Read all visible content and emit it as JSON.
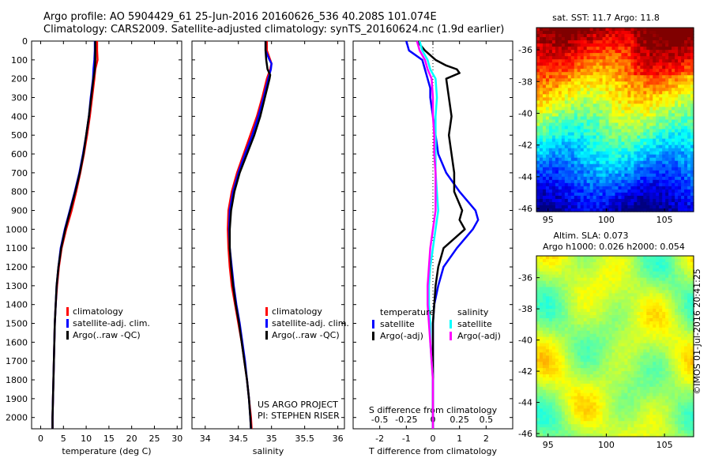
{
  "header": {
    "line1": "Argo profile: AO 5904429_61 25-Jun-2016 20160626_536 40.208S 101.074E",
    "line2": "Climatology: CARS2009. Satellite-adjusted climatology: synTS_20160624.nc (1.9d earlier)"
  },
  "sst_title": "sat. SST: 11.7 Argo: 11.8",
  "sla_title1": "Altim. SLA: 0.073",
  "sla_title2": "Argo h1000: 0.026 h2000: 0.054",
  "credit": "©IMOS 01-Jul-2016 20:41:25",
  "colors": {
    "climatology": "#ff0000",
    "satellite": "#0000ff",
    "argo": "#000000",
    "sat_s": "#00ffff",
    "argo_s": "#ff00ff"
  },
  "chart_data": [
    {
      "type": "line",
      "xlabel": "temperature (deg C)",
      "xlim": [
        -2,
        31
      ],
      "xticks": [
        0,
        5,
        10,
        15,
        20,
        25,
        30
      ],
      "ylim": [
        2060,
        0
      ],
      "yticks": [
        0,
        100,
        200,
        300,
        400,
        500,
        600,
        700,
        800,
        900,
        1000,
        1100,
        1200,
        1300,
        1400,
        1500,
        1600,
        1700,
        1800,
        1900,
        2000
      ],
      "legend": [
        "climatology",
        "satellite-adj. clim.",
        "Argo(..raw -QC)"
      ],
      "series": [
        {
          "name": "climatology",
          "depth": [
            0,
            50,
            100,
            150,
            200,
            300,
            400,
            500,
            600,
            700,
            800,
            900,
            1000,
            1100,
            1200,
            1300,
            1400,
            1500,
            1600,
            1700,
            1800,
            1900,
            2000,
            2060
          ],
          "values": [
            12.4,
            12.4,
            12.5,
            12.0,
            11.8,
            11.3,
            10.8,
            10.2,
            9.5,
            8.7,
            7.8,
            6.8,
            5.6,
            4.6,
            4.0,
            3.6,
            3.3,
            3.1,
            3.0,
            2.9,
            2.8,
            2.7,
            2.6,
            2.6
          ]
        },
        {
          "name": "satellite-adj. clim.",
          "depth": [
            0,
            50,
            100,
            150,
            200,
            300,
            400,
            500,
            600,
            700,
            800,
            900,
            1000,
            1100,
            1200,
            1300,
            1400,
            1500,
            1600,
            1700,
            1800,
            1900,
            2000,
            2060
          ],
          "values": [
            11.9,
            11.9,
            11.8,
            11.6,
            11.5,
            11.0,
            10.6,
            10.0,
            9.3,
            8.5,
            7.5,
            6.4,
            5.3,
            4.4,
            3.9,
            3.5,
            3.3,
            3.1,
            3.0,
            2.9,
            2.8,
            2.7,
            2.6,
            2.6
          ]
        },
        {
          "name": "Argo(..raw -QC)",
          "depth": [
            0,
            50,
            100,
            150,
            200,
            300,
            400,
            500,
            600,
            700,
            800,
            900,
            1000,
            1100,
            1200,
            1300,
            1400,
            1500,
            1600,
            1700,
            1800,
            1900,
            2000,
            2060
          ],
          "values": [
            12.0,
            12.0,
            12.0,
            11.9,
            11.6,
            11.1,
            10.6,
            10.0,
            9.4,
            8.6,
            7.6,
            6.5,
            5.4,
            4.5,
            3.9,
            3.5,
            3.3,
            3.1,
            3.0,
            2.9,
            2.8,
            2.7,
            2.6,
            2.6
          ]
        }
      ]
    },
    {
      "type": "line",
      "xlabel": "salinity",
      "xlim": [
        33.8,
        36.1
      ],
      "xticks": [
        34,
        34.5,
        35,
        35.5,
        36
      ],
      "xticklabels": [
        "34",
        "34.5",
        "35",
        "35.5",
        "36"
      ],
      "ylim": [
        2060,
        0
      ],
      "legend": [
        "climatology",
        "satellite-adj. clim.",
        "Argo(..raw -QC)"
      ],
      "annotation": [
        "US ARGO PROJECT",
        "PI: STEPHEN RISER"
      ],
      "series": [
        {
          "name": "climatology",
          "depth": [
            0,
            50,
            100,
            120,
            150,
            200,
            300,
            400,
            500,
            600,
            700,
            800,
            900,
            1000,
            1100,
            1200,
            1300,
            1400,
            1500,
            1600,
            1700,
            1800,
            1900,
            2000,
            2060
          ],
          "values": [
            34.93,
            34.93,
            34.98,
            35.0,
            34.98,
            34.93,
            34.86,
            34.78,
            34.68,
            34.58,
            34.48,
            34.4,
            34.35,
            34.34,
            34.35,
            34.37,
            34.4,
            34.45,
            34.5,
            34.55,
            34.59,
            34.63,
            34.66,
            34.69,
            34.7
          ]
        },
        {
          "name": "satellite-adj. clim.",
          "depth": [
            0,
            50,
            100,
            120,
            150,
            200,
            300,
            400,
            500,
            600,
            700,
            800,
            900,
            1000,
            1100,
            1200,
            1300,
            1400,
            1500,
            1600,
            1700,
            1800,
            1900,
            2000,
            2060
          ],
          "values": [
            34.91,
            34.91,
            34.97,
            35.0,
            34.99,
            34.95,
            34.88,
            34.8,
            34.71,
            34.6,
            34.5,
            34.42,
            34.37,
            34.36,
            34.37,
            34.4,
            34.43,
            34.47,
            34.52,
            34.56,
            34.6,
            34.63,
            34.66,
            34.68,
            34.69
          ]
        },
        {
          "name": "Argo(..raw -QC)",
          "depth": [
            0,
            50,
            100,
            150,
            180,
            200,
            300,
            400,
            500,
            600,
            700,
            800,
            900,
            1000,
            1100,
            1200,
            1300,
            1400,
            1500,
            1600,
            1700,
            1800,
            1900,
            2000,
            2060
          ],
          "values": [
            34.91,
            34.91,
            34.92,
            34.94,
            34.98,
            34.97,
            34.9,
            34.83,
            34.74,
            34.63,
            34.52,
            34.44,
            34.39,
            34.37,
            34.37,
            34.39,
            34.42,
            34.46,
            34.51,
            34.55,
            34.59,
            34.63,
            34.66,
            34.68,
            34.69
          ]
        }
      ]
    },
    {
      "type": "line",
      "xlabel": "T difference from climatology",
      "xlabel2": "S difference from climatology",
      "xlim": [
        -3,
        3
      ],
      "xticks": [
        -2,
        -1,
        0,
        1,
        2
      ],
      "xticks2": [
        -0.5,
        -0.25,
        0,
        0.25,
        0.5
      ],
      "xticklabels2": [
        "-0.5",
        "-0.25",
        "0",
        "0.25",
        "0.5"
      ],
      "ylim": [
        2060,
        0
      ],
      "legend_groups": [
        {
          "title": "temperature",
          "items": [
            "satellite",
            "Argo(-adj)"
          ]
        },
        {
          "title": "salinity",
          "items": [
            "satellite",
            "Argo(-adj)"
          ]
        }
      ],
      "series": [
        {
          "name": "temperature satellite",
          "depth": [
            0,
            50,
            100,
            150,
            200,
            250,
            300,
            400,
            500,
            600,
            700,
            800,
            850,
            900,
            950,
            1000,
            1100,
            1200,
            1300,
            1400,
            1500,
            1600,
            1700,
            1800,
            1900,
            2000,
            2060
          ],
          "values": [
            -1.0,
            -0.9,
            -0.4,
            -0.3,
            -0.2,
            -0.1,
            -0.1,
            0.0,
            0.1,
            0.2,
            0.5,
            1.0,
            1.3,
            1.6,
            1.7,
            1.5,
            0.9,
            0.4,
            0.2,
            0.05,
            0.0,
            0.0,
            0.0,
            0.0,
            0.0,
            0.0,
            0.0
          ]
        },
        {
          "name": "temperature Argo(-adj)",
          "depth": [
            0,
            50,
            100,
            130,
            150,
            170,
            200,
            300,
            400,
            500,
            600,
            700,
            800,
            900,
            950,
            1000,
            1100,
            1200,
            1300,
            1400,
            1500,
            1600,
            1700,
            1800,
            1900,
            2000,
            2060
          ],
          "values": [
            -0.6,
            -0.3,
            0.1,
            0.5,
            0.9,
            1.0,
            0.5,
            0.6,
            0.7,
            0.6,
            0.7,
            0.8,
            0.8,
            1.1,
            1.0,
            1.2,
            0.4,
            0.2,
            0.1,
            0.05,
            0.0,
            0.0,
            0.0,
            0.0,
            0.0,
            0.0,
            0.0
          ]
        },
        {
          "name": "salinity satellite",
          "depth": [
            0,
            50,
            100,
            150,
            200,
            300,
            400,
            500,
            600,
            700,
            800,
            900,
            1000,
            1100,
            1200,
            1300,
            1400,
            1500,
            1600,
            1700,
            1800,
            1900,
            2000,
            2060
          ],
          "values": [
            -0.5,
            -0.4,
            -0.2,
            -0.1,
            0.1,
            0.15,
            0.1,
            0.1,
            0.1,
            0.1,
            0.15,
            0.2,
            0.1,
            0.0,
            -0.1,
            -0.15,
            -0.15,
            -0.1,
            -0.1,
            -0.05,
            0.0,
            0.0,
            0.0,
            0.0
          ]
        },
        {
          "name": "salinity Argo(-adj)",
          "depth": [
            0,
            50,
            100,
            150,
            200,
            300,
            400,
            500,
            600,
            700,
            800,
            900,
            1000,
            1100,
            1200,
            1300,
            1400,
            1500,
            1600,
            1700,
            1800,
            1900,
            2000,
            2060
          ],
          "values": [
            -0.6,
            -0.5,
            -0.3,
            -0.2,
            -0.05,
            0.0,
            0.0,
            0.05,
            0.05,
            0.1,
            0.1,
            0.1,
            0.0,
            -0.1,
            -0.15,
            -0.2,
            -0.2,
            -0.15,
            -0.1,
            -0.05,
            0.0,
            0.0,
            0.0,
            0.0
          ]
        }
      ]
    },
    {
      "type": "heatmap",
      "title": "sat. SST: 11.7 Argo: 11.8",
      "xlim": [
        94,
        107.5
      ],
      "ylim": [
        -46.2,
        -34.6
      ],
      "xticks": [
        95,
        100,
        105
      ],
      "yticks": [
        -36,
        -38,
        -40,
        -42,
        -44,
        -46
      ]
    },
    {
      "type": "heatmap",
      "title": "Altim. SLA: 0.073",
      "subtitle": "Argo h1000: 0.026 h2000: 0.054",
      "xlim": [
        94,
        107.5
      ],
      "ylim": [
        -46.2,
        -34.6
      ],
      "xticks": [
        95,
        100,
        105
      ],
      "yticks": [
        -36,
        -38,
        -40,
        -42,
        -44,
        -46
      ]
    }
  ]
}
